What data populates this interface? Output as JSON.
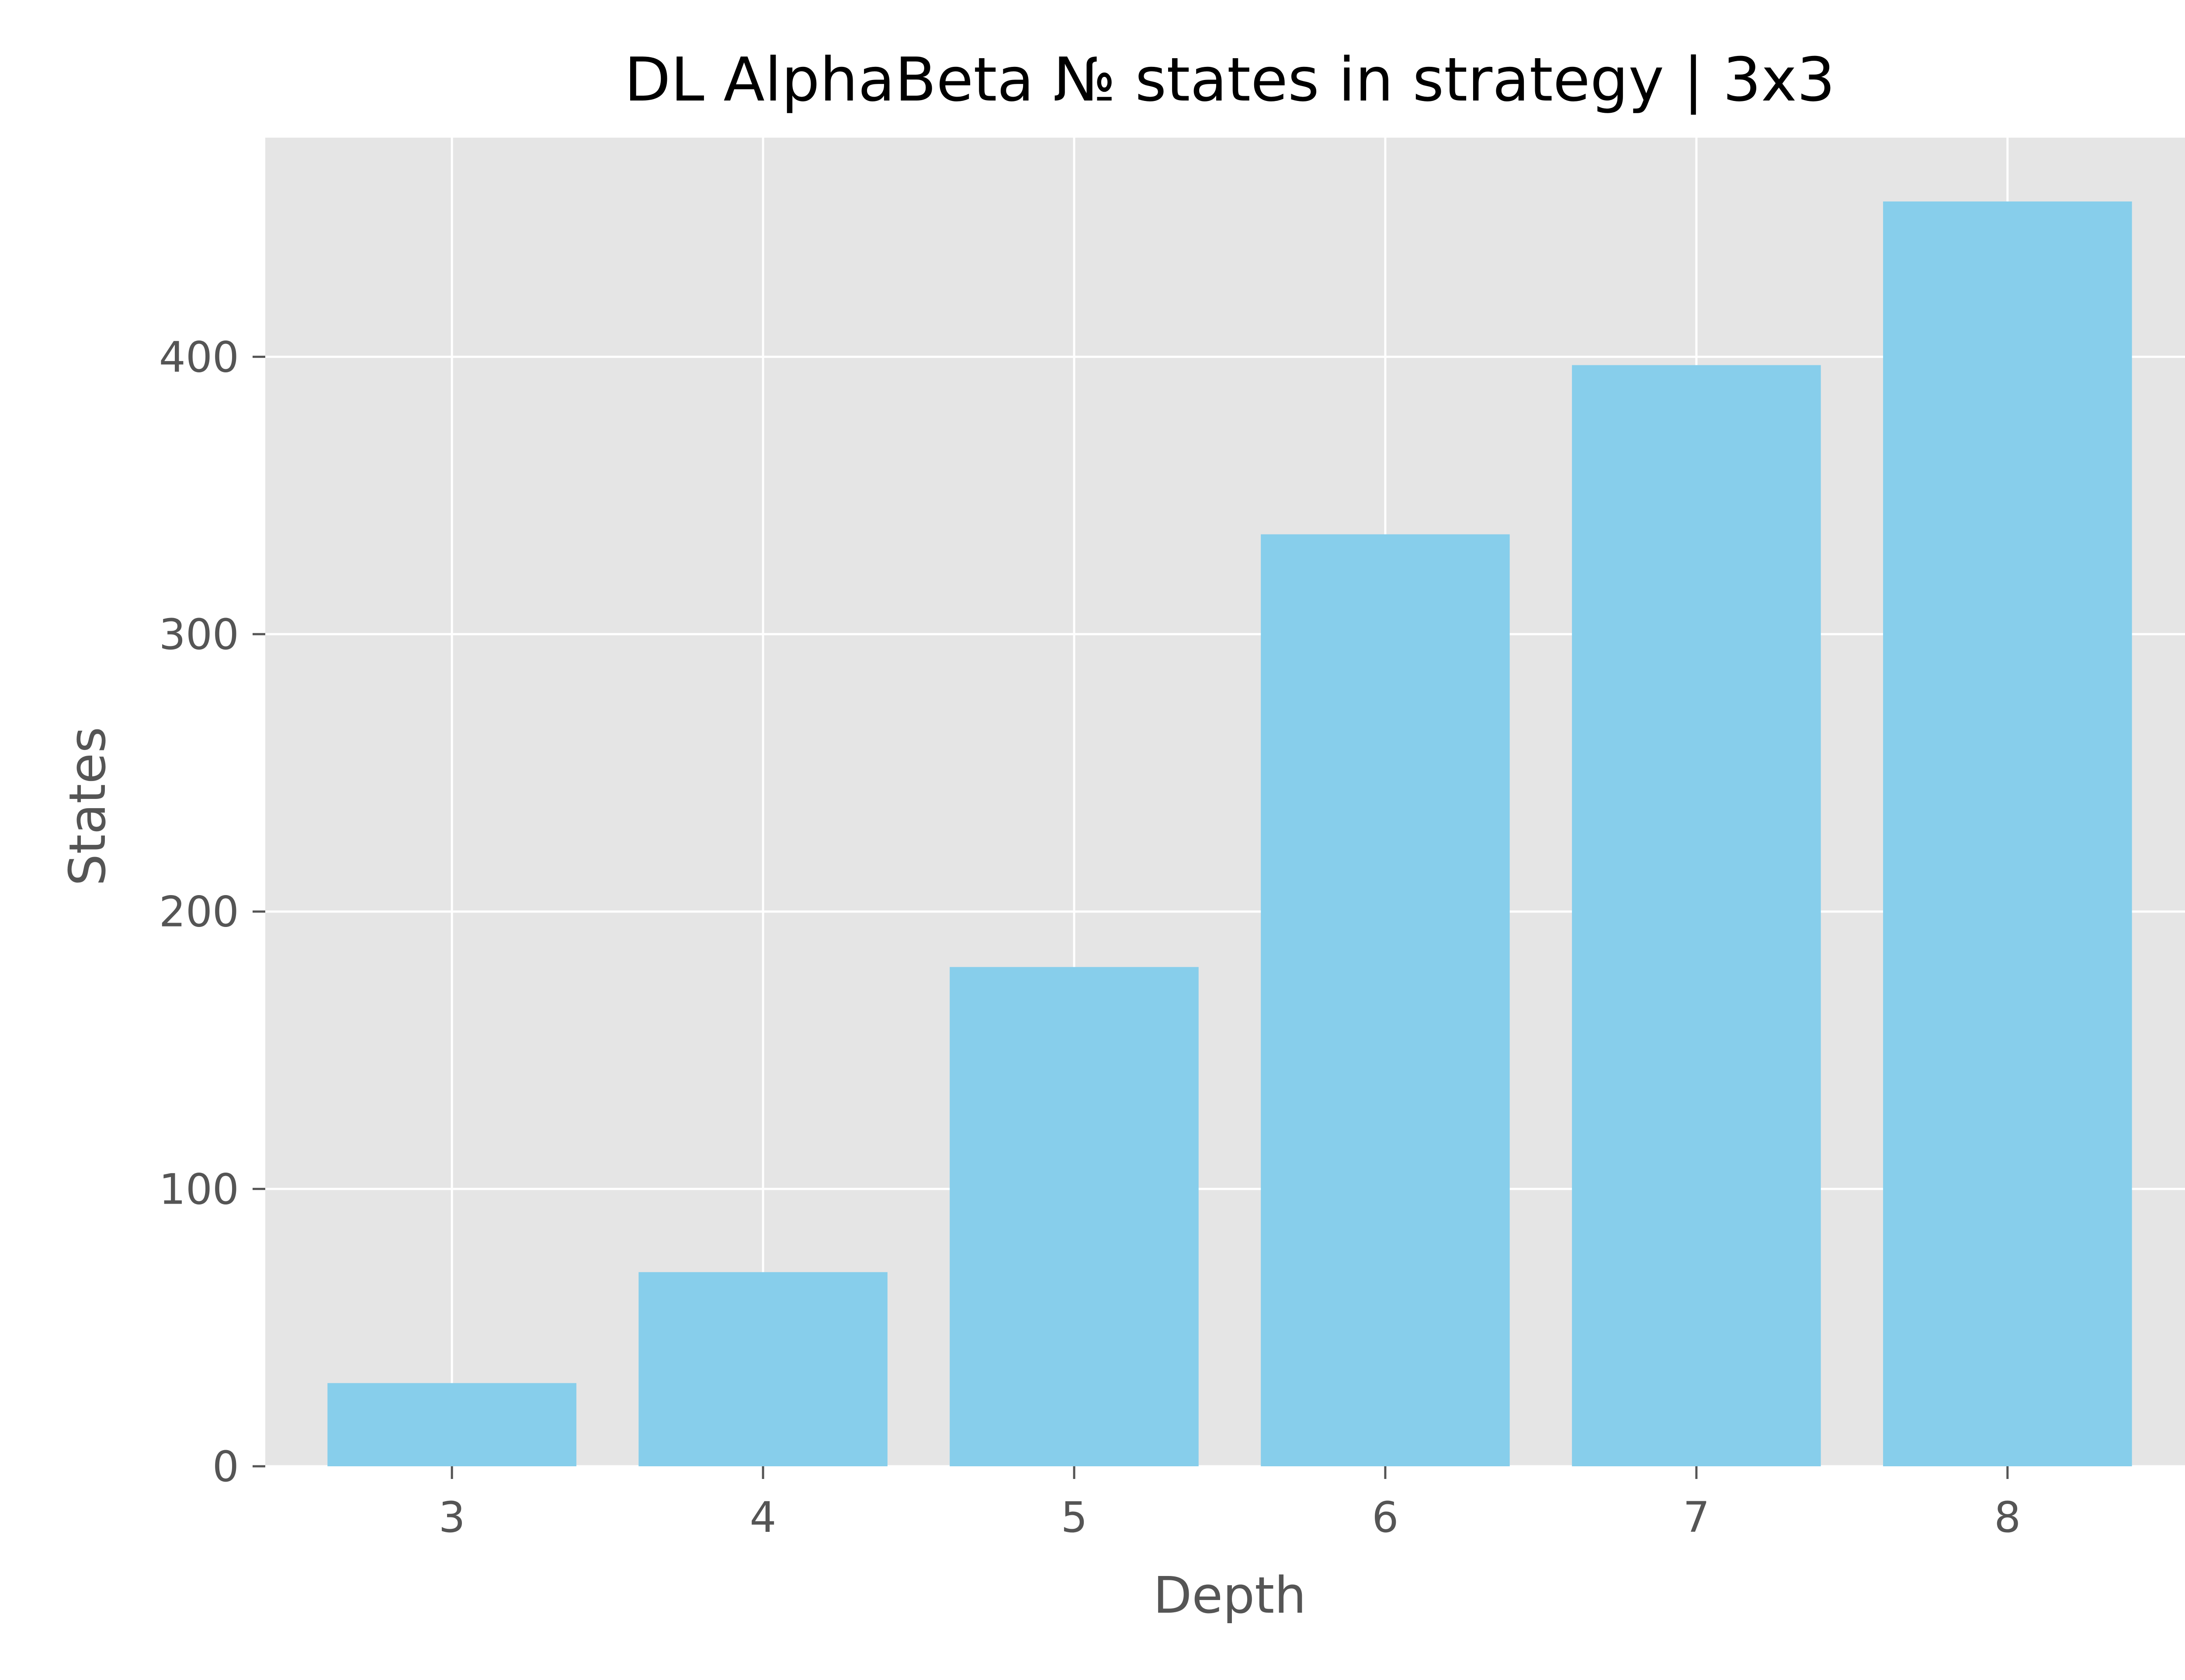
{
  "chart_data": {
    "type": "bar",
    "title": "DL AlphaBeta № states in strategy | 3x3",
    "xlabel": "Depth",
    "ylabel": "States",
    "categories": [
      "3",
      "4",
      "5",
      "6",
      "7",
      "8"
    ],
    "values": [
      30,
      70,
      180,
      336,
      397,
      456
    ],
    "ylim": [
      0,
      479
    ],
    "yticks": [
      "0",
      "100",
      "200",
      "300",
      "400"
    ],
    "grid": true,
    "bar_color": "#87CEEB",
    "plot_background": "#E5E5E5",
    "grid_color": "#FFFFFF"
  }
}
